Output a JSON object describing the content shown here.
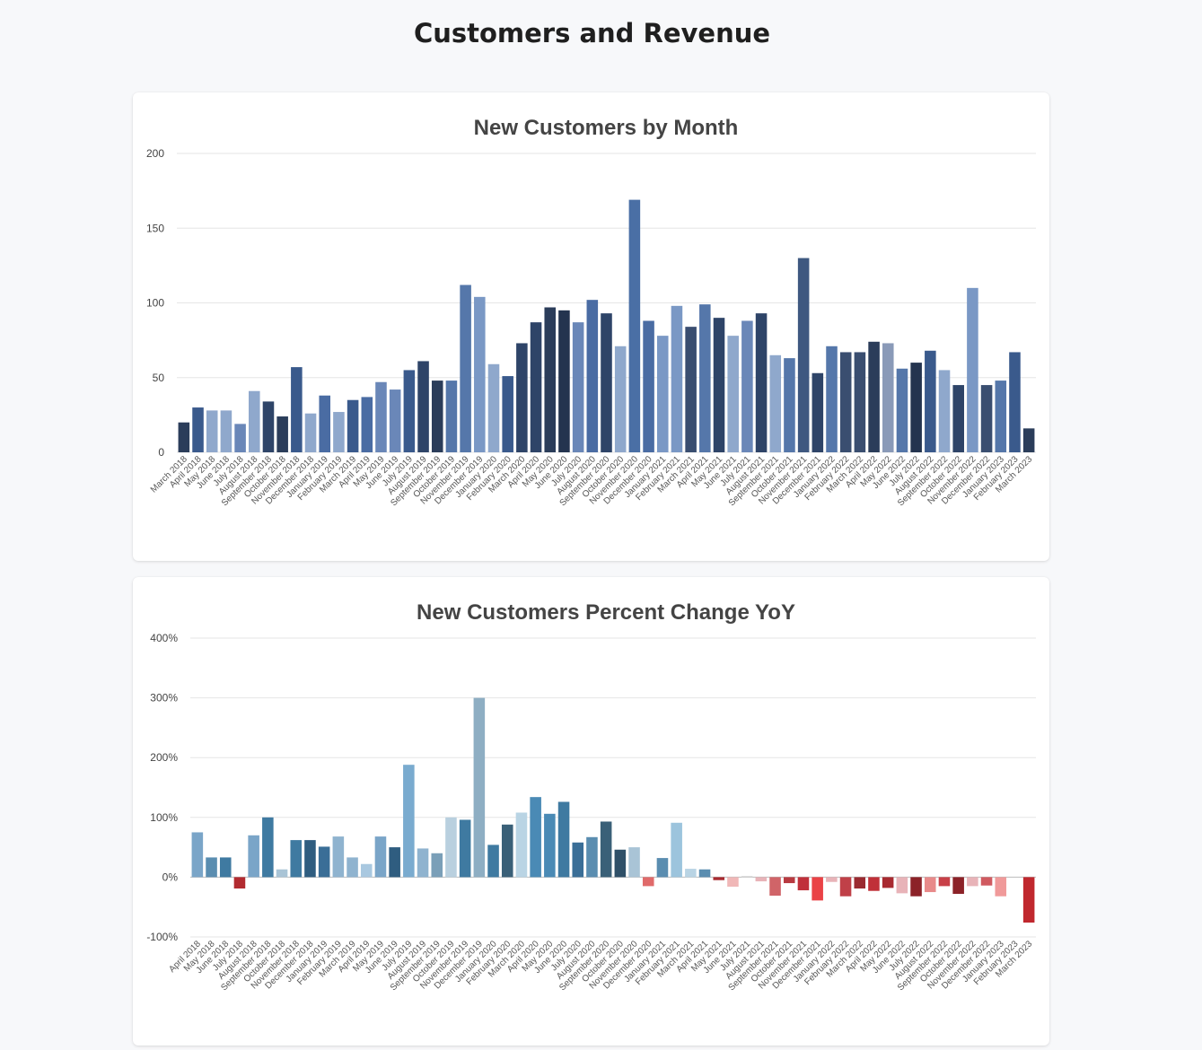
{
  "page": {
    "title": "Customers and Revenue"
  },
  "chart_data": [
    {
      "type": "bar",
      "title": "New Customers by Month",
      "xlabel": "",
      "ylabel": "",
      "ylim": [
        0,
        200
      ],
      "yticks": [
        0,
        50,
        100,
        150,
        200
      ],
      "ytick_format": "plain",
      "grid": true,
      "categories": [
        "March 2018",
        "April 2018",
        "May 2018",
        "June 2018",
        "July 2018",
        "August 2018",
        "September 2018",
        "October 2018",
        "November 2018",
        "December 2018",
        "January 2019",
        "February 2019",
        "March 2019",
        "April 2019",
        "May 2019",
        "June 2019",
        "July 2019",
        "August 2019",
        "September 2019",
        "October 2019",
        "November 2019",
        "December 2019",
        "January 2020",
        "February 2020",
        "March 2020",
        "April 2020",
        "May 2020",
        "June 2020",
        "July 2020",
        "August 2020",
        "September 2020",
        "October 2020",
        "November 2020",
        "December 2020",
        "January 2021",
        "February 2021",
        "March 2021",
        "April 2021",
        "May 2021",
        "June 2021",
        "July 2021",
        "August 2021",
        "September 2021",
        "October 2021",
        "November 2021",
        "December 2021",
        "January 2022",
        "February 2022",
        "March 2022",
        "April 2022",
        "May 2022",
        "June 2022",
        "July 2022",
        "August 2022",
        "September 2022",
        "October 2022",
        "November 2022",
        "December 2022",
        "January 2023",
        "February 2023",
        "March 2023"
      ],
      "values": [
        20,
        30,
        28,
        28,
        19,
        41,
        34,
        24,
        57,
        26,
        38,
        27,
        35,
        37,
        47,
        42,
        55,
        61,
        48,
        48,
        112,
        104,
        59,
        51,
        73,
        87,
        97,
        95,
        87,
        102,
        93,
        71,
        169,
        88,
        78,
        98,
        84,
        99,
        90,
        78,
        88,
        93,
        65,
        63,
        130,
        53,
        71,
        67,
        67,
        74,
        73,
        56,
        60,
        68,
        55,
        45,
        110,
        45,
        48,
        67,
        16
      ],
      "colors": [
        "#2b3d5a",
        "#3a5a8c",
        "#8fa8cc",
        "#8fa8cc",
        "#6a87b8",
        "#8fa8cc",
        "#2e4468",
        "#2b3d5a",
        "#3a5a8c",
        "#8fa8cc",
        "#4a6ca3",
        "#8fa8cc",
        "#3a5a8c",
        "#4a6ca3",
        "#6a87b8",
        "#6a87b8",
        "#3a5a8c",
        "#2e4468",
        "#2b3d5a",
        "#5577aa",
        "#5577aa",
        "#7a98c5",
        "#8fa8cc",
        "#3a5a8c",
        "#2e4468",
        "#2e4468",
        "#2b3d5a",
        "#24344f",
        "#6a87b8",
        "#4a6ca3",
        "#2e4468",
        "#8fa8cc",
        "#4a6fa5",
        "#4a6ca3",
        "#7a98c5",
        "#7a98c5",
        "#3a4e70",
        "#5577aa",
        "#2e4468",
        "#8fa8cc",
        "#6a87b8",
        "#2e4468",
        "#8fa8cc",
        "#5577aa",
        "#3e5880",
        "#2e4468",
        "#5577aa",
        "#3a4e70",
        "#3a4e70",
        "#2b3d5a",
        "#8a9ab8",
        "#5577aa",
        "#24344f",
        "#3a5a8c",
        "#8fa8cc",
        "#2e4468",
        "#7a98c5",
        "#3a4e70",
        "#5577aa",
        "#3a5a8c",
        "#2b3d5a"
      ]
    },
    {
      "type": "bar",
      "title": "New Customers Percent Change YoY",
      "xlabel": "",
      "ylabel": "",
      "ylim": [
        -100,
        400
      ],
      "yticks": [
        -100,
        0,
        100,
        200,
        300,
        400
      ],
      "ytick_format": "percent",
      "grid": true,
      "categories": [
        "April 2018",
        "May 2018",
        "June 2018",
        "July 2018",
        "August 2018",
        "September 2018",
        "October 2018",
        "November 2018",
        "December 2018",
        "January 2019",
        "February 2019",
        "March 2019",
        "April 2019",
        "May 2019",
        "June 2019",
        "July 2019",
        "August 2019",
        "September 2019",
        "October 2019",
        "November 2019",
        "December 2019",
        "January 2020",
        "February 2020",
        "March 2020",
        "April 2020",
        "May 2020",
        "June 2020",
        "July 2020",
        "August 2020",
        "September 2020",
        "October 2020",
        "November 2020",
        "December 2020",
        "January 2021",
        "February 2021",
        "March 2021",
        "April 2021",
        "May 2021",
        "June 2021",
        "July 2021",
        "August 2021",
        "September 2021",
        "October 2021",
        "November 2021",
        "December 2021",
        "January 2022",
        "February 2022",
        "March 2022",
        "April 2022",
        "May 2022",
        "June 2022",
        "July 2022",
        "August 2022",
        "September 2022",
        "October 2022",
        "November 2022",
        "December 2022",
        "January 2023",
        "February 2023",
        "March 2023"
      ],
      "values": [
        75,
        33,
        33,
        -19,
        70,
        100,
        13,
        62,
        62,
        51,
        68,
        33,
        22,
        68,
        50,
        188,
        48,
        40,
        100,
        96,
        300,
        54,
        88,
        108,
        134,
        106,
        126,
        58,
        67,
        93,
        46,
        50,
        -15,
        32,
        91,
        14,
        13,
        -5,
        -16,
        2,
        -7,
        -31,
        -10,
        -22,
        -39,
        -8,
        -32,
        -19,
        -23,
        -18,
        -27,
        -32,
        -25,
        -15,
        -28,
        -15,
        -14,
        -32,
        0,
        -76
      ],
      "colors": [
        "#7aa5c8",
        "#5a8db0",
        "#3f7aa1",
        "#b22b30",
        "#7aa5c8",
        "#3f7aa1",
        "#a9c4d6",
        "#3f7aa1",
        "#2f5d80",
        "#3a6e97",
        "#8fb3cf",
        "#8fb3cf",
        "#a9c8e0",
        "#7aa5c8",
        "#2f5d80",
        "#7aabcf",
        "#8fb3cf",
        "#7a9fb8",
        "#b9d0df",
        "#3f7aa1",
        "#8eaec3",
        "#3f7aa1",
        "#3a6078",
        "#b9d4e4",
        "#4a8ab5",
        "#4a8ab5",
        "#3f7aa1",
        "#3a6e97",
        "#5a8db0",
        "#3a6078",
        "#2f5068",
        "#a9c4d6",
        "#e06a6a",
        "#5a8db0",
        "#9cc4dd",
        "#b9d4e4",
        "#5a8db0",
        "#a82a30",
        "#f0b7b7",
        "#d9d9d9",
        "#e8b3b8",
        "#d06468",
        "#b83a40",
        "#c0303a",
        "#ea4246",
        "#e8b3b8",
        "#c04048",
        "#9a2a30",
        "#c03038",
        "#a82a30",
        "#e8b3b8",
        "#8c2228",
        "#e88a8a",
        "#c84048",
        "#8c2228",
        "#e8b3b8",
        "#d05a60",
        "#f09a9a",
        "#cccccc",
        "#c0282e"
      ]
    }
  ]
}
